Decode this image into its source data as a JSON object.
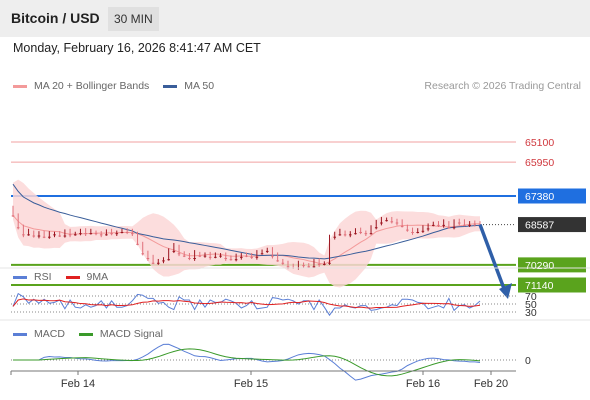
{
  "header": {
    "title": "Bitcoin / USD",
    "timeframe": "30 MIN"
  },
  "timestamp": "Monday, February 16, 2026 8:41:47 AM CET",
  "credit": "Research © 2026 Trading Central",
  "price_legend": [
    {
      "label": "MA 20 + Bollinger Bands",
      "color": "#f39a9a"
    },
    {
      "label": "MA 50",
      "color": "#3a5e9a"
    }
  ],
  "rsi_legend": [
    {
      "label": "RSI",
      "color": "#5b7fd6"
    },
    {
      "label": "9MA",
      "color": "#e02020"
    }
  ],
  "macd_legend": [
    {
      "label": "MACD",
      "color": "#5b7fd6"
    },
    {
      "label": "MACD Signal",
      "color": "#3a9a2a"
    }
  ],
  "colors": {
    "resistance": "#5aa31d",
    "support": "#1f6fe0",
    "minor": "#f0a0a0",
    "current": "#333333",
    "bull": "#e0707a",
    "bear": "#9c1520",
    "arrow": "#2f5fa8",
    "band_fill": "#fbd7d7"
  },
  "chart_data": {
    "type": "candlestick",
    "x_labels": [
      "Feb 14",
      "Feb 15",
      "Feb 16",
      "Feb 20"
    ],
    "levels": [
      {
        "value": 71140,
        "label": "71140",
        "kind": "resistance"
      },
      {
        "value": 70290,
        "label": "70290",
        "kind": "resistance"
      },
      {
        "value": 68587,
        "label": "68587",
        "kind": "current"
      },
      {
        "value": 67380,
        "label": "67380",
        "kind": "support"
      },
      {
        "value": 65950,
        "label": "65950",
        "kind": "minor"
      },
      {
        "value": 65100,
        "label": "65100",
        "kind": "minor"
      }
    ],
    "close": [
      68200,
      68700,
      69000,
      68900,
      69050,
      68950,
      69100,
      69000,
      68950,
      69050,
      68900,
      69000,
      68950,
      68850,
      68950,
      68900,
      68950,
      69000,
      68900,
      68950,
      68900,
      68850,
      68900,
      68950,
      69400,
      69800,
      70000,
      70200,
      70100,
      70050,
      69700,
      69500,
      69800,
      69900,
      70000,
      69800,
      69900,
      69850,
      69950,
      69900,
      69850,
      70000,
      70050,
      69950,
      69850,
      69900,
      69950,
      69800,
      69700,
      69650,
      69900,
      70100,
      70200,
      70350,
      70400,
      70250,
      70300,
      70350,
      70150,
      70250,
      70200,
      69100,
      69000,
      68900,
      69000,
      68950,
      68850,
      68900,
      68950,
      68700,
      68500,
      68400,
      68350,
      68450,
      68500,
      68650,
      68800,
      68900,
      68850,
      68750,
      68600,
      68550,
      68600,
      68500,
      68700,
      68450,
      68500,
      68600,
      68500,
      68550,
      68587
    ],
    "ma50_end": 68850,
    "rsi": {
      "levels": [
        70,
        50,
        30
      ]
    },
    "macd": {
      "levels": [
        0
      ]
    },
    "forecast_arrow": {
      "from": 68587,
      "to": 71140
    }
  }
}
